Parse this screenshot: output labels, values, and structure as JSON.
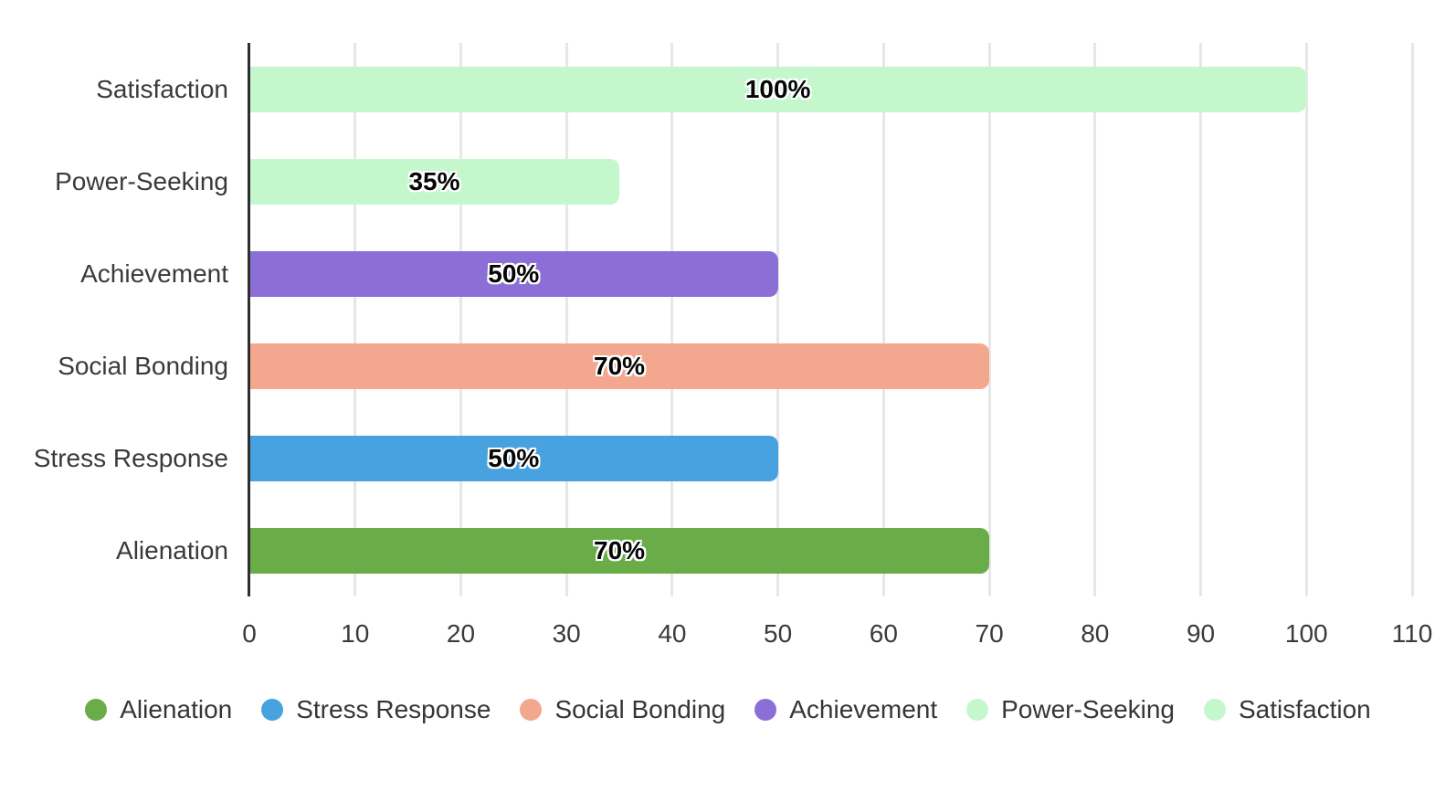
{
  "chart_style": {
    "background": "#ffffff",
    "axis_color": "#2e2e2e",
    "gridline_color": "#e7e7e7",
    "text_color": "#3a3a3a",
    "bar_label_color": "#050505"
  },
  "chart_data": {
    "type": "bar",
    "orientation": "horizontal",
    "title": "",
    "xlabel": "",
    "ylabel": "",
    "xlim": [
      0,
      110
    ],
    "x_ticks": [
      0,
      10,
      20,
      30,
      40,
      50,
      60,
      70,
      80,
      90,
      100,
      110
    ],
    "grid": true,
    "categories": [
      "Satisfaction",
      "Power-Seeking",
      "Achievement",
      "Social Bonding",
      "Stress Response",
      "Alienation"
    ],
    "rows": [
      {
        "label": "Satisfaction",
        "value": 100,
        "value_label": "100%",
        "color": "#c5f7cd"
      },
      {
        "label": "Power-Seeking",
        "value": 35,
        "value_label": "35%",
        "color": "#c5f7cd"
      },
      {
        "label": "Achievement",
        "value": 50,
        "value_label": "50%",
        "color": "#8b6fd6"
      },
      {
        "label": "Social Bonding",
        "value": 70,
        "value_label": "70%",
        "color": "#f3a78e"
      },
      {
        "label": "Stress Response",
        "value": 50,
        "value_label": "50%",
        "color": "#47a2df"
      },
      {
        "label": "Alienation",
        "value": 70,
        "value_label": "70%",
        "color": "#6aac48"
      }
    ],
    "legend": {
      "position": "bottom",
      "items": [
        {
          "label": "Alienation",
          "color": "#6aac48"
        },
        {
          "label": "Stress Response",
          "color": "#47a2df"
        },
        {
          "label": "Social Bonding",
          "color": "#f3a78e"
        },
        {
          "label": "Achievement",
          "color": "#8b6fd6"
        },
        {
          "label": "Power-Seeking",
          "color": "#c5f7cd"
        },
        {
          "label": "Satisfaction",
          "color": "#c5f7cd"
        }
      ]
    }
  }
}
